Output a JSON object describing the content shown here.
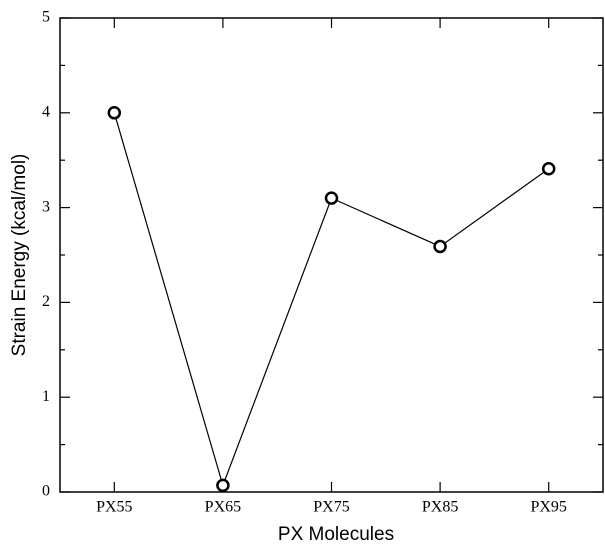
{
  "chart_data": {
    "type": "line",
    "x_label": "PX Molecules",
    "y_label": "Strain Energy (kcal/mol)",
    "categories": [
      "PX55",
      "PX65",
      "PX75",
      "PX85",
      "PX95"
    ],
    "values": [
      4.0,
      0.07,
      3.1,
      2.59,
      3.41
    ],
    "color": "#000000",
    "marker": "circle",
    "ylim": [
      0,
      5
    ],
    "yticks": [
      0,
      1,
      2,
      3,
      4,
      5
    ],
    "yminorticks": [
      0.5,
      1.5,
      2.5,
      3.5,
      4.5
    ],
    "grid": false
  }
}
